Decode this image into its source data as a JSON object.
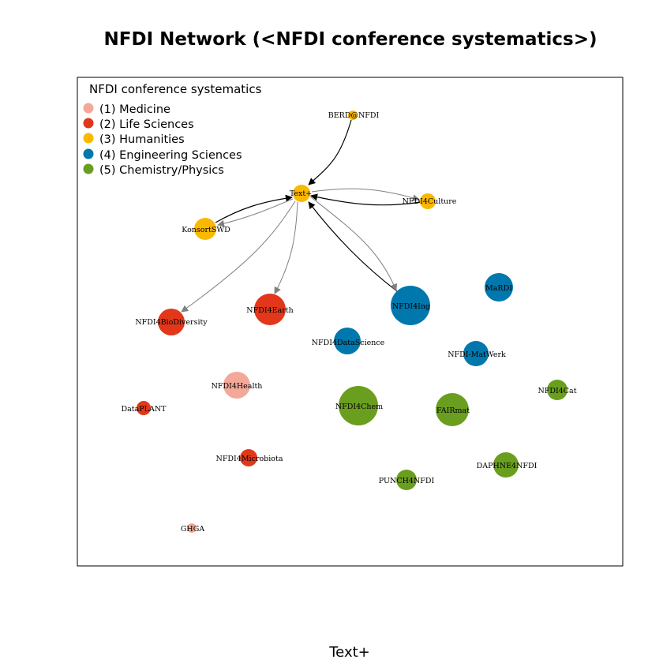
{
  "title": "NFDI Network (<NFDI conference systematics>)",
  "xlabel": "Text+",
  "legend": {
    "title": "NFDI conference systematics",
    "items": [
      {
        "label": "(1) Medicine",
        "color": "#F4A899"
      },
      {
        "label": "(2) Life Sciences",
        "color": "#E2371A"
      },
      {
        "label": "(3) Humanities",
        "color": "#FBB800"
      },
      {
        "label": "(4) Engineering Sciences",
        "color": "#0077AD"
      },
      {
        "label": "(5) Chemistry/Physics",
        "color": "#6A9E1F"
      }
    ]
  },
  "nodes": [
    {
      "id": "BERD@NFDI",
      "label": "BERD@NFDI",
      "category": 3
    },
    {
      "id": "Text+",
      "label": "Text+",
      "category": 3
    },
    {
      "id": "NFDI4Culture",
      "label": "NFDI4Culture",
      "category": 3
    },
    {
      "id": "KonsortSWD",
      "label": "KonsortSWD",
      "category": 3
    },
    {
      "id": "MaRDI",
      "label": "MaRDI",
      "category": 4
    },
    {
      "id": "NFDI4Ing",
      "label": "NFDI4Ing",
      "category": 4
    },
    {
      "id": "NFDI4Earth",
      "label": "NFDI4Earth",
      "category": 2
    },
    {
      "id": "NFDI4BioDiversity",
      "label": "NFDI4BioDiversity",
      "category": 2
    },
    {
      "id": "NFDI4DataScience",
      "label": "NFDI4DataScience",
      "category": 4
    },
    {
      "id": "NFDI-MatWerk",
      "label": "NFDI-MatWerk",
      "category": 4
    },
    {
      "id": "NFDI4Health",
      "label": "NFDI4Health",
      "category": 1
    },
    {
      "id": "NFDI4Cat",
      "label": "NFDI4Cat",
      "category": 5
    },
    {
      "id": "DataPLANT",
      "label": "DataPLANT",
      "category": 2
    },
    {
      "id": "NFDI4Chem",
      "label": "NFDI4Chem",
      "category": 5
    },
    {
      "id": "FAIRmat",
      "label": "FAIRmat",
      "category": 5
    },
    {
      "id": "NFDI4Microbiota",
      "label": "NFDI4Microbiota",
      "category": 2
    },
    {
      "id": "DAPHNE4NFDI",
      "label": "DAPHNE4NFDI",
      "category": 5
    },
    {
      "id": "PUNCH4NFDI",
      "label": "PUNCH4NFDI",
      "category": 5
    },
    {
      "id": "GHGA",
      "label": "GHGA",
      "category": 1
    }
  ],
  "edges": [
    {
      "from": "BERD@NFDI",
      "to": "Text+",
      "style": "incoming"
    },
    {
      "from": "NFDI4Culture",
      "to": "Text+",
      "style": "incoming"
    },
    {
      "from": "Text+",
      "to": "NFDI4Culture",
      "style": "outgoing"
    },
    {
      "from": "KonsortSWD",
      "to": "Text+",
      "style": "incoming"
    },
    {
      "from": "Text+",
      "to": "KonsortSWD",
      "style": "outgoing"
    },
    {
      "from": "NFDI4Ing",
      "to": "Text+",
      "style": "incoming"
    },
    {
      "from": "Text+",
      "to": "NFDI4Ing",
      "style": "outgoing"
    },
    {
      "from": "Text+",
      "to": "NFDI4Earth",
      "style": "outgoing"
    },
    {
      "from": "Text+",
      "to": "NFDI4BioDiversity",
      "style": "outgoing"
    }
  ]
}
